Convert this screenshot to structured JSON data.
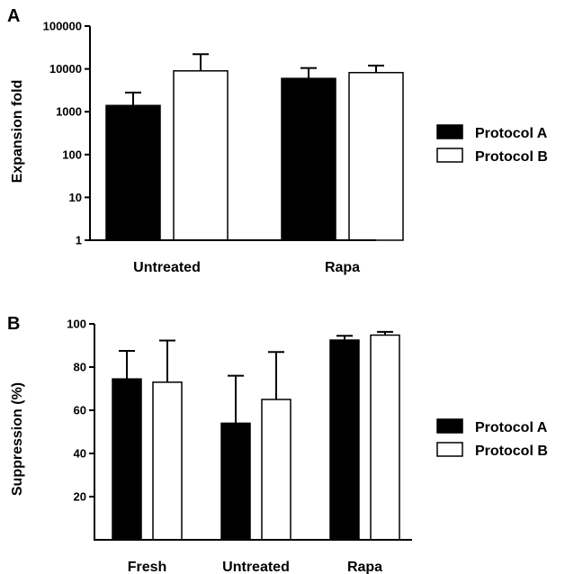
{
  "colors": {
    "protocol_a": "#000000",
    "protocol_b": "#ffffff",
    "outline": "#000000"
  },
  "chart_data": [
    {
      "panel": "A",
      "type": "bar",
      "categories": [
        "Untreated",
        "Rapa"
      ],
      "ylabel": "Expansion fold",
      "yscale": "log",
      "ylim": [
        1,
        100000
      ],
      "yticks": [
        "1",
        "10",
        "100",
        "1000",
        "10000",
        "100000"
      ],
      "legend": {
        "position": "right",
        "entries": [
          "Protocol A",
          "Protocol B"
        ]
      },
      "series": [
        {
          "name": "Protocol A",
          "values": [
            1400,
            6000
          ],
          "errors_upper": [
            2800,
            10500
          ]
        },
        {
          "name": "Protocol B",
          "values": [
            9000,
            8200
          ],
          "errors_upper": [
            22000,
            12000
          ]
        }
      ]
    },
    {
      "panel": "B",
      "type": "bar",
      "categories": [
        "Fresh",
        "Untreated",
        "Rapa"
      ],
      "ylabel": "Suppression (%)",
      "yscale": "linear",
      "ylim": [
        0,
        100
      ],
      "yticks": [
        "20",
        "40",
        "60",
        "80",
        "100"
      ],
      "legend": {
        "position": "right",
        "entries": [
          "Protocol A",
          "Protocol B"
        ]
      },
      "series": [
        {
          "name": "Protocol A",
          "values": [
            74.5,
            54,
            92.5
          ],
          "errors_upper": [
            87.5,
            76,
            94.5
          ]
        },
        {
          "name": "Protocol B",
          "values": [
            73,
            65,
            94.8
          ],
          "errors_upper": [
            92.3,
            87,
            96.3
          ]
        }
      ]
    }
  ]
}
